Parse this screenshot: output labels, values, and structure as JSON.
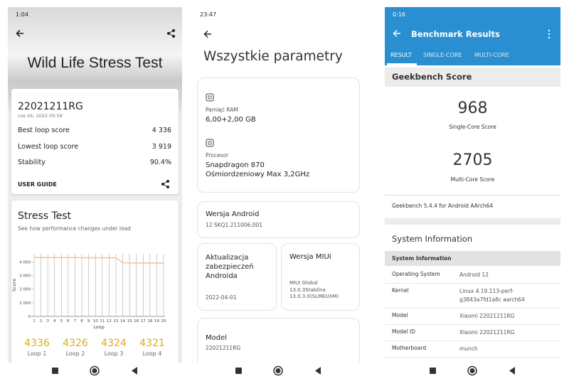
{
  "screen1": {
    "status_time": "1:04",
    "title": "Wild Life Stress Test",
    "device": "22021211RG",
    "date": "cze 26, 2022 00:58",
    "stats": [
      {
        "label": "Best loop score",
        "value": "4 336"
      },
      {
        "label": "Lowest loop score",
        "value": "3 919"
      },
      {
        "label": "Stability",
        "value": "90.4%"
      }
    ],
    "user_guide": "USER GUIDE",
    "section_title": "Stress Test",
    "section_subtitle": "See how performance changes under load",
    "chart": {
      "type": "line",
      "ylabel": "Score",
      "xlabel": "Loop",
      "color": "#f2c58a",
      "x": [
        1,
        2,
        3,
        4,
        5,
        6,
        7,
        8,
        9,
        10,
        11,
        12,
        13,
        14,
        15,
        16,
        17,
        18,
        19,
        20
      ],
      "values": [
        4336,
        4326,
        4324,
        4321,
        4320,
        4318,
        4316,
        4315,
        4313,
        4312,
        4310,
        4308,
        4305,
        3950,
        3925,
        3922,
        3921,
        3920,
        3919,
        3920
      ],
      "ylim": [
        0,
        4600
      ],
      "yticks": [
        0,
        {
          "value": 1000,
          "label": "1 000"
        },
        {
          "value": 2000,
          "label": "2 000"
        },
        {
          "value": 3000,
          "label": "3 000"
        },
        {
          "value": 4000,
          "label": "4 000"
        }
      ]
    },
    "loop_labels": [
      "Loop 1",
      "Loop 2",
      "Loop 3",
      "Loop 4"
    ]
  },
  "screen2": {
    "status_time": "23:47",
    "title": "Wszystkie parametry",
    "ram_label": "Pamięć RAM",
    "ram_value": "6,00+2,00 GB",
    "cpu_label": "Procesor",
    "cpu_name": "Snapdragon 870",
    "cpu_detail": "Ośmiordzeniowy Max 3,2GHz",
    "android_label": "Wersja Android",
    "android_value": "12 SKQ1.211006.001",
    "security_label": "Aktualizacja zabezpieczeń Androida",
    "security_value": "2022-04-01",
    "miui_label": "Wersja MIUI",
    "miui_value": "MIUI Global\n13.0.3Stabilna\n13.0.3.0(SLMEUXM)",
    "model_label": "Model",
    "model_value": "22021211RG"
  },
  "screen3": {
    "status_time": "0:16",
    "title": "Benchmark Results",
    "tabs": [
      "RESULT",
      "SINGLE-CORE",
      "MULTI-CORE"
    ],
    "score_heading": "Geekbench Score",
    "single_score": "968",
    "single_label": "Single-Core Score",
    "multi_score": "2705",
    "multi_label": "Multi-Core Score",
    "version": "Geekbench 5.4.4 for Android AArch64",
    "sysinfo_heading": "System Information",
    "table_header": "System Information",
    "rows": [
      [
        "Operating System",
        "Android 12"
      ],
      [
        "Kernel",
        "Linux 4.19.113-perf-g3843a7fd1a8c aarch64"
      ],
      [
        "Model",
        "Xiaomi 22021211RG"
      ],
      [
        "Model ID",
        "Xiaomi 22021211RG"
      ],
      [
        "Motherboard",
        "munch"
      ]
    ]
  }
}
